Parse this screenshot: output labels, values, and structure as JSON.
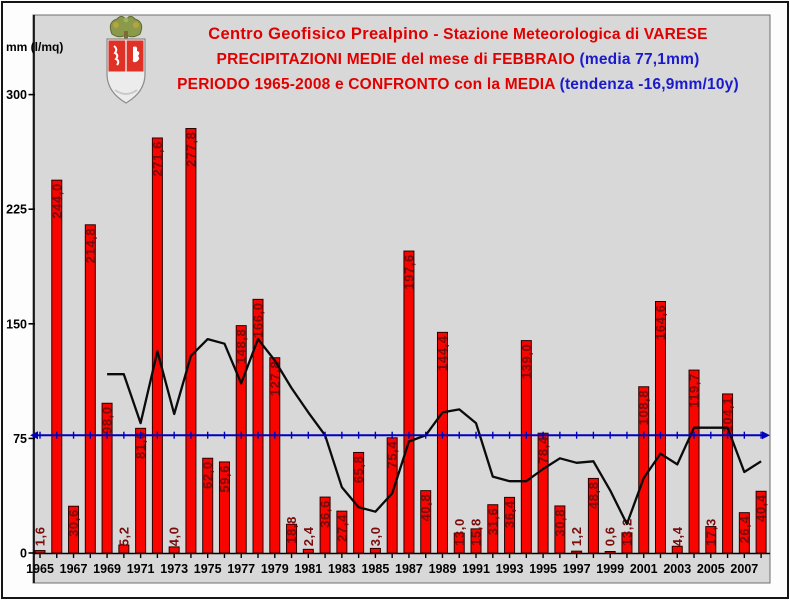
{
  "header": {
    "line1_bold": "Centro Geofisico Prealpino",
    "line1_rest": " - Stazione Meteorologica di VARESE",
    "line2_red": "PRECIPITAZIONI MEDIE del mese di FEBBRAIO ",
    "line2_blue": "(media 77,1mm)",
    "line3_red": "PERIODO 1965-2008 e CONFRONTO con la MEDIA ",
    "line3_blue": "(tendenza -16,9mm/10y)"
  },
  "chart_data": {
    "type": "bar",
    "title": "Centro Geofisico Prealpino - Stazione Meteorologica di VARESE, PRECIPITAZIONI MEDIE del mese di FEBBRAIO, PERIODO 1965-2008 e CONFRONTO con la MEDIA",
    "xlabel": "",
    "ylabel": "mm (l/mq)",
    "ylim": [
      0,
      310
    ],
    "y_ticks": [
      0,
      75,
      150,
      225,
      300
    ],
    "grid": false,
    "legend": "none",
    "decimal_separator": ",",
    "categories": [
      1965,
      1966,
      1967,
      1968,
      1969,
      1970,
      1971,
      1972,
      1973,
      1974,
      1975,
      1976,
      1977,
      1978,
      1979,
      1980,
      1981,
      1982,
      1983,
      1984,
      1985,
      1986,
      1987,
      1988,
      1989,
      1990,
      1991,
      1992,
      1993,
      1994,
      1995,
      1996,
      1997,
      1998,
      1999,
      2000,
      2001,
      2002,
      2003,
      2004,
      2005,
      2006,
      2007,
      2008
    ],
    "values": [
      1.6,
      244.0,
      30.6,
      214.8,
      98.0,
      5.2,
      81.6,
      271.6,
      4.0,
      277.8,
      62.0,
      59.6,
      148.8,
      166.0,
      127.8,
      18.8,
      2.4,
      36.6,
      27.4,
      65.8,
      3.0,
      75.4,
      197.6,
      40.8,
      144.4,
      13.0,
      15.8,
      31.6,
      36.4,
      139.0,
      78.4,
      30.8,
      1.2,
      48.8,
      0.6,
      13.2,
      108.8,
      164.6,
      4.4,
      119.7,
      17.3,
      104.1,
      26.4,
      40.4
    ],
    "x_tick_labels": [
      "1965",
      "1967",
      "1969",
      "1971",
      "1973",
      "1975",
      "1977",
      "1979",
      "1981",
      "1983",
      "1985",
      "1987",
      "1989",
      "1991",
      "1993",
      "1995",
      "1997",
      "1999",
      "2001",
      "2003",
      "2005",
      "2007"
    ],
    "mean_line": {
      "name": "media",
      "value": 77.1,
      "display": "media 77,1mm",
      "color": "#0000bd"
    },
    "trend_line": {
      "name": "media mobile / tendenza",
      "display": "tendenza -16,9mm/10y",
      "color": "#0b0b0b",
      "years": [
        1969,
        1970,
        1971,
        1972,
        1973,
        1974,
        1975,
        1976,
        1977,
        1978,
        1979,
        1980,
        1981,
        1982,
        1983,
        1984,
        1985,
        1986,
        1987,
        1988,
        1989,
        1990,
        1991,
        1992,
        1993,
        1994,
        1995,
        1996,
        1997,
        1998,
        1999,
        2000,
        2001,
        2002,
        2003,
        2004,
        2005,
        2006,
        2007,
        2008
      ],
      "values": [
        117,
        117,
        85,
        132,
        91,
        129,
        140,
        137,
        111,
        140,
        126,
        108,
        92,
        77,
        43,
        30,
        27,
        39,
        73,
        77,
        92,
        94,
        85,
        50,
        47,
        47,
        55,
        62,
        59,
        60,
        41,
        19,
        49,
        65,
        58,
        82,
        82,
        82,
        53,
        60
      ]
    },
    "colors": {
      "panel_bg": "#d8d8d8",
      "bar": "#f90500",
      "bar_border": "#2b0000",
      "bar_label": "#7a0c0c",
      "axis": "#000000"
    }
  }
}
